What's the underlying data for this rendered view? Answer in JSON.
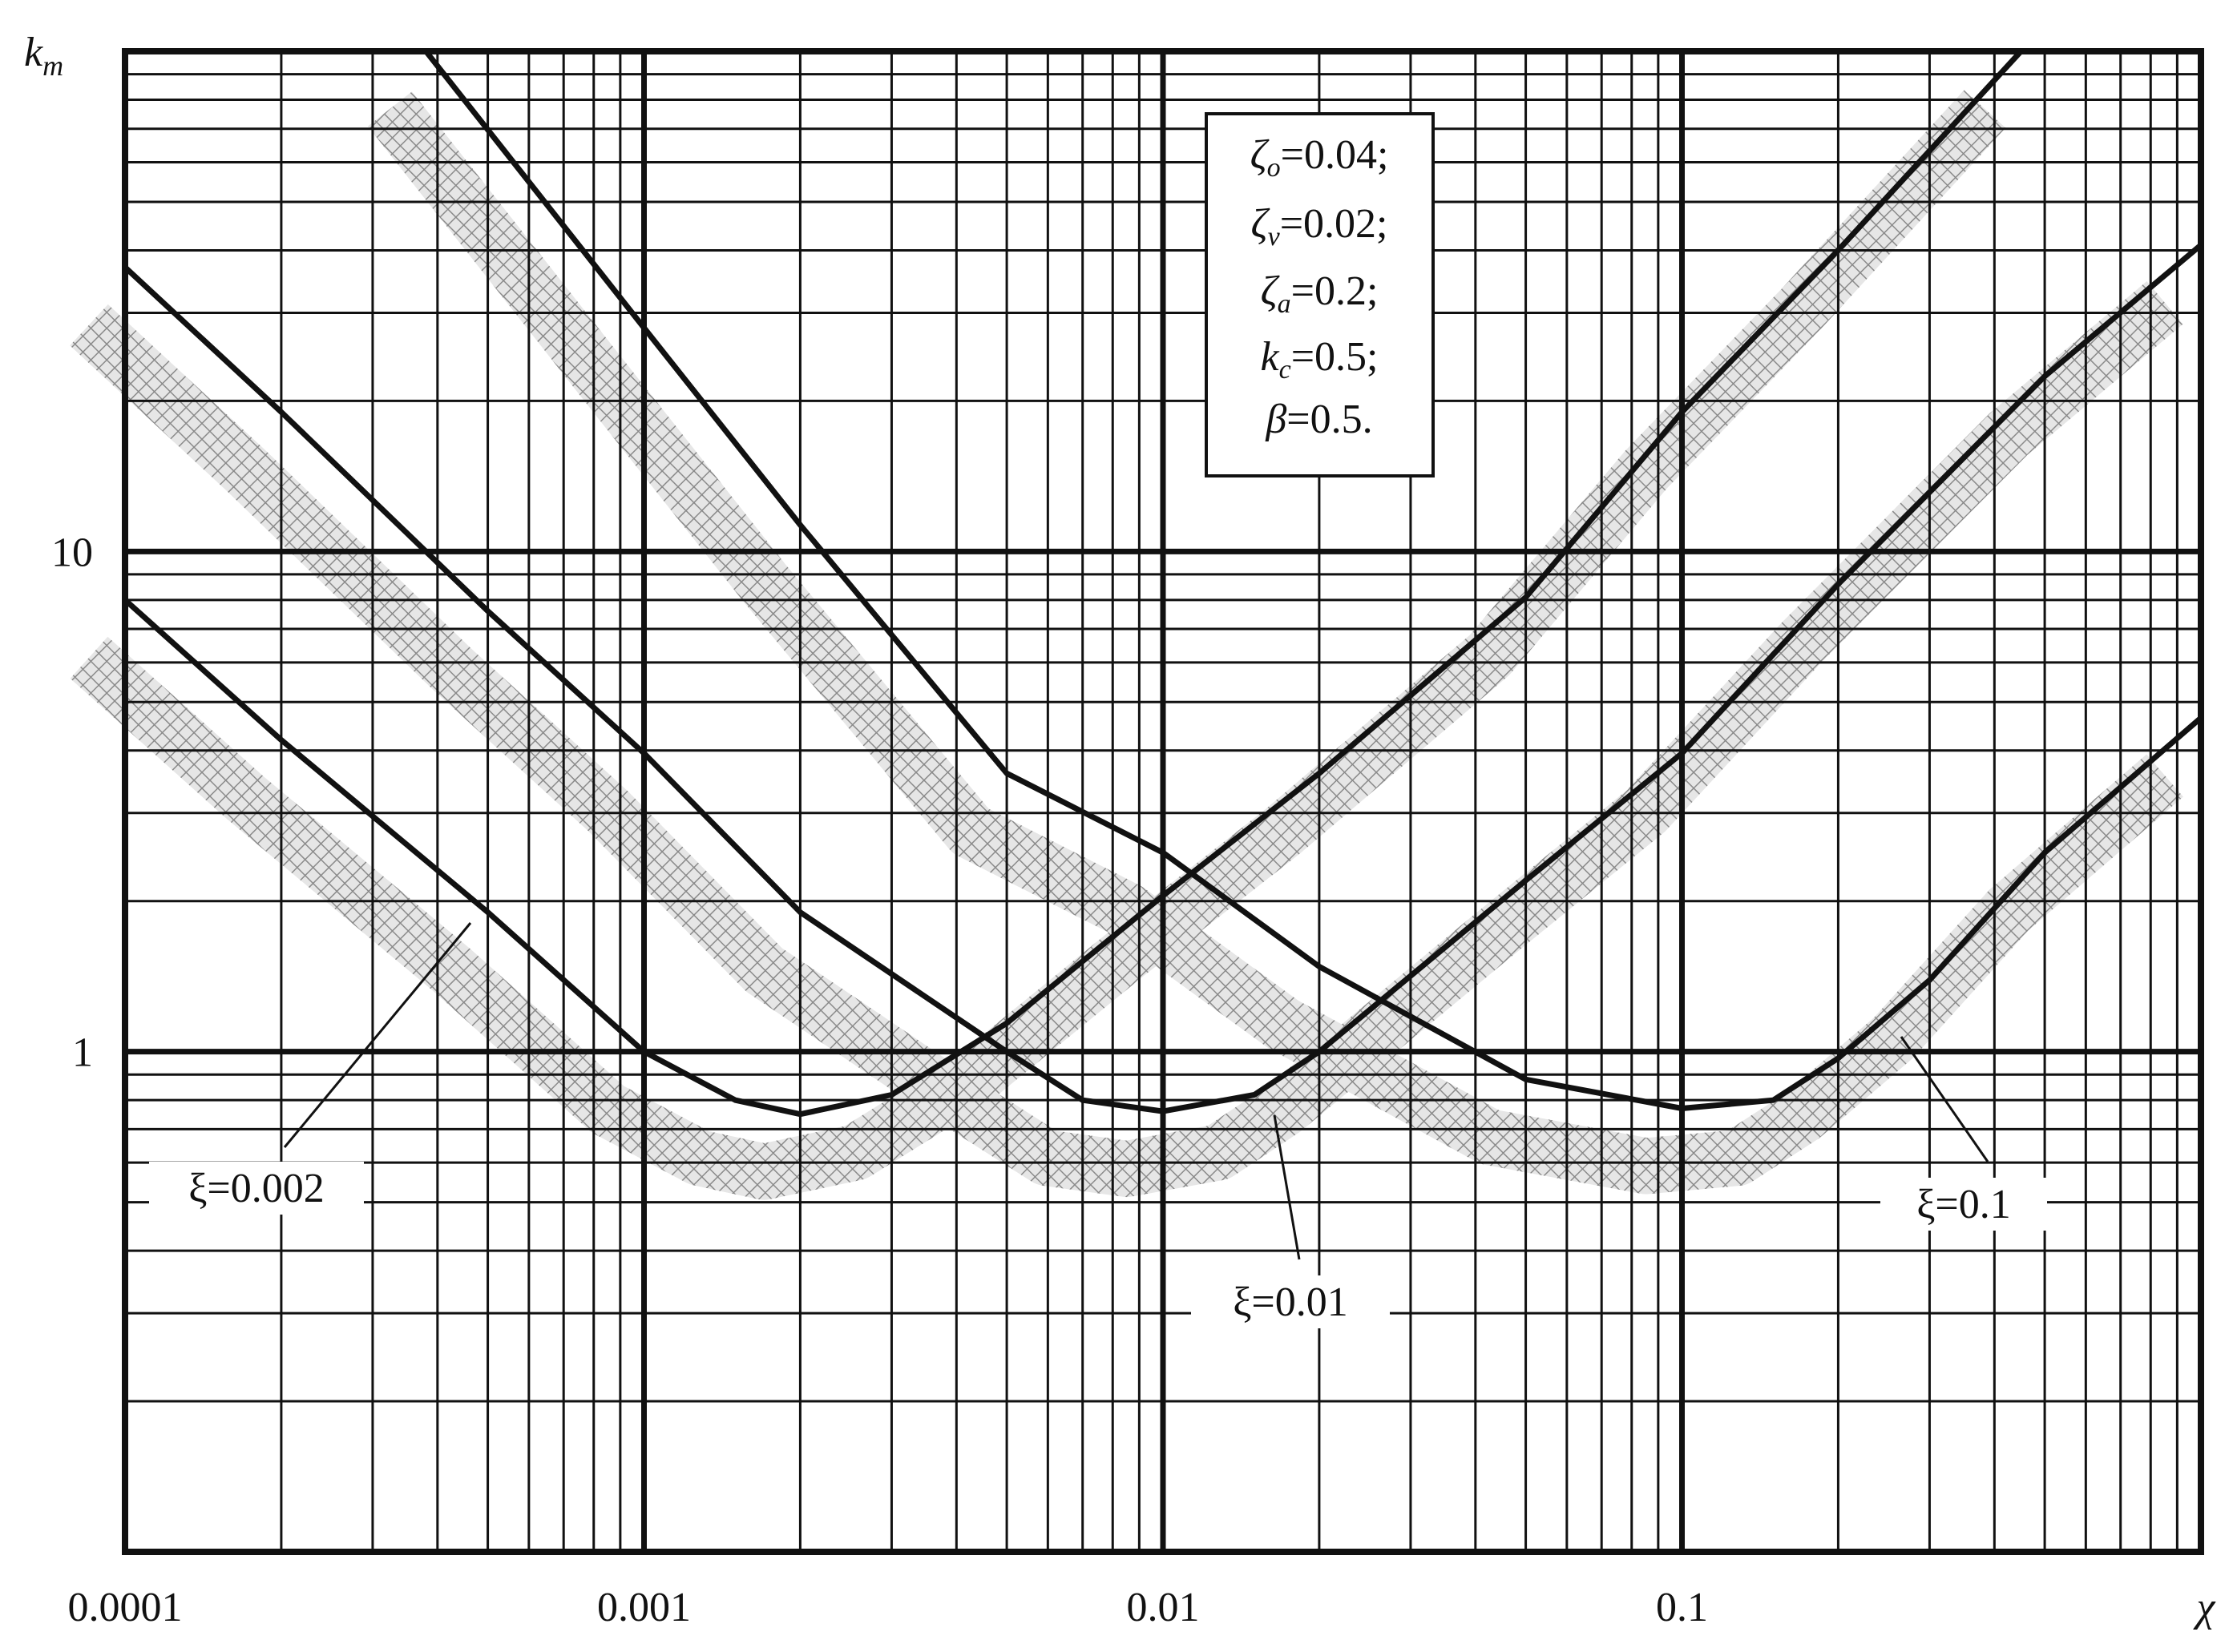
{
  "chart_data": {
    "type": "line",
    "ylabel": [
      "k",
      "m"
    ],
    "xlabel": "χ",
    "log_x": true,
    "log_y": true,
    "grid": true,
    "xlim": [
      0.0001,
      1
    ],
    "ylim": [
      0.1,
      100
    ],
    "xticks": [
      0.0001,
      0.001,
      0.01,
      0.1
    ],
    "yticks": [
      1,
      10
    ],
    "annotation": [
      {
        "symbol": "ζ",
        "sub": "o",
        "text": "=0.04;"
      },
      {
        "symbol": "ζ",
        "sub": "v",
        "text": "=0.02;"
      },
      {
        "symbol": "ζ",
        "sub": "a",
        "text": "=0.2;"
      },
      {
        "symbol": "k",
        "sub": "c",
        "text": "=0.5;"
      },
      {
        "symbol": "β",
        "sub": "",
        "text": "=0.5."
      }
    ],
    "series": [
      {
        "name": "ξ=0.002",
        "color": "#111111",
        "x": [
          0.0001,
          0.0002,
          0.0005,
          0.001,
          0.0015,
          0.002,
          0.003,
          0.005,
          0.01,
          0.02,
          0.05,
          0.1,
          0.2,
          0.45
        ],
        "values": [
          8.0,
          4.2,
          1.9,
          1.0,
          0.8,
          0.75,
          0.82,
          1.14,
          2.05,
          3.6,
          8.1,
          19,
          40,
          100
        ]
      },
      {
        "name": "ξ=0.01",
        "color": "#111111",
        "x": [
          0.0001,
          0.0002,
          0.0005,
          0.001,
          0.002,
          0.005,
          0.007,
          0.01,
          0.015,
          0.02,
          0.05,
          0.1,
          0.2,
          0.5,
          1
        ],
        "values": [
          37,
          19,
          7.6,
          3.95,
          1.9,
          1.0,
          0.8,
          0.76,
          0.82,
          1.0,
          2.2,
          3.95,
          8.6,
          22.4,
          41
        ]
      },
      {
        "name": "ξ=0.1",
        "color": "#111111",
        "x": [
          0.00038,
          0.001,
          0.002,
          0.005,
          0.01,
          0.02,
          0.05,
          0.1,
          0.15,
          0.2,
          0.3,
          0.5,
          1
        ],
        "values": [
          100,
          28,
          11.3,
          3.6,
          2.5,
          1.48,
          0.88,
          0.77,
          0.8,
          0.97,
          1.39,
          2.5,
          4.65
        ]
      }
    ]
  }
}
